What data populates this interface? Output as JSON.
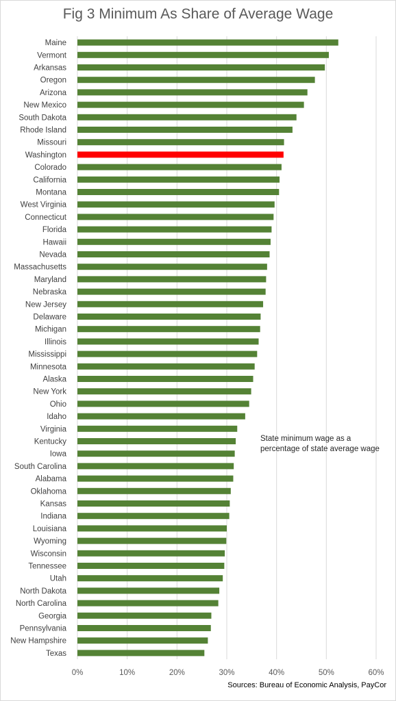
{
  "chart_data": {
    "type": "bar",
    "orientation": "horizontal",
    "title": "Fig 3 Minimum As Share of Average Wage",
    "annotation": "State minimum  wage as a percentage of state average wage",
    "source": "Sources: Bureau of Economic Analysis, PayCor",
    "xlim": [
      0,
      60
    ],
    "x_ticks": [
      "0%",
      "10%",
      "20%",
      "30%",
      "40%",
      "50%",
      "60%"
    ],
    "grid": true,
    "bar_color": "#548235",
    "highlight_color": "#ff0000",
    "highlight": "Washington",
    "categories": [
      "Maine",
      "Vermont",
      "Arkansas",
      "Oregon",
      "Arizona",
      "New Mexico",
      "South Dakota",
      "Rhode Island",
      "Missouri",
      "Washington",
      "Colorado",
      "California",
      "Montana",
      "West Virginia",
      "Connecticut",
      "Florida",
      "Hawaii",
      "Nevada",
      "Massachusetts",
      "Maryland",
      "Nebraska",
      "New Jersey",
      "Delaware",
      "Michigan",
      "Illinois",
      "Mississippi",
      "Minnesota",
      "Alaska",
      "New York",
      "Ohio",
      "Idaho",
      "Virginia",
      "Kentucky",
      "Iowa",
      "South Carolina",
      "Alabama",
      "Oklahoma",
      "Kansas",
      "Indiana",
      "Louisiana",
      "Wyoming",
      "Wisconsin",
      "Tennessee",
      "Utah",
      "North Dakota",
      "North Carolina",
      "Georgia",
      "Pennsylvania",
      "New Hampshire",
      "Texas"
    ],
    "values": [
      52.4,
      50.5,
      49.7,
      47.7,
      46.2,
      45.5,
      44.0,
      43.2,
      41.5,
      41.4,
      41.0,
      40.6,
      40.5,
      39.6,
      39.4,
      39.0,
      38.8,
      38.6,
      38.1,
      37.9,
      37.8,
      37.3,
      36.8,
      36.7,
      36.4,
      36.1,
      35.6,
      35.3,
      34.9,
      34.5,
      33.7,
      32.1,
      31.8,
      31.6,
      31.4,
      31.3,
      30.8,
      30.6,
      30.5,
      30.0,
      29.9,
      29.6,
      29.5,
      29.2,
      28.5,
      28.3,
      26.9,
      26.8,
      26.2,
      25.5
    ]
  }
}
